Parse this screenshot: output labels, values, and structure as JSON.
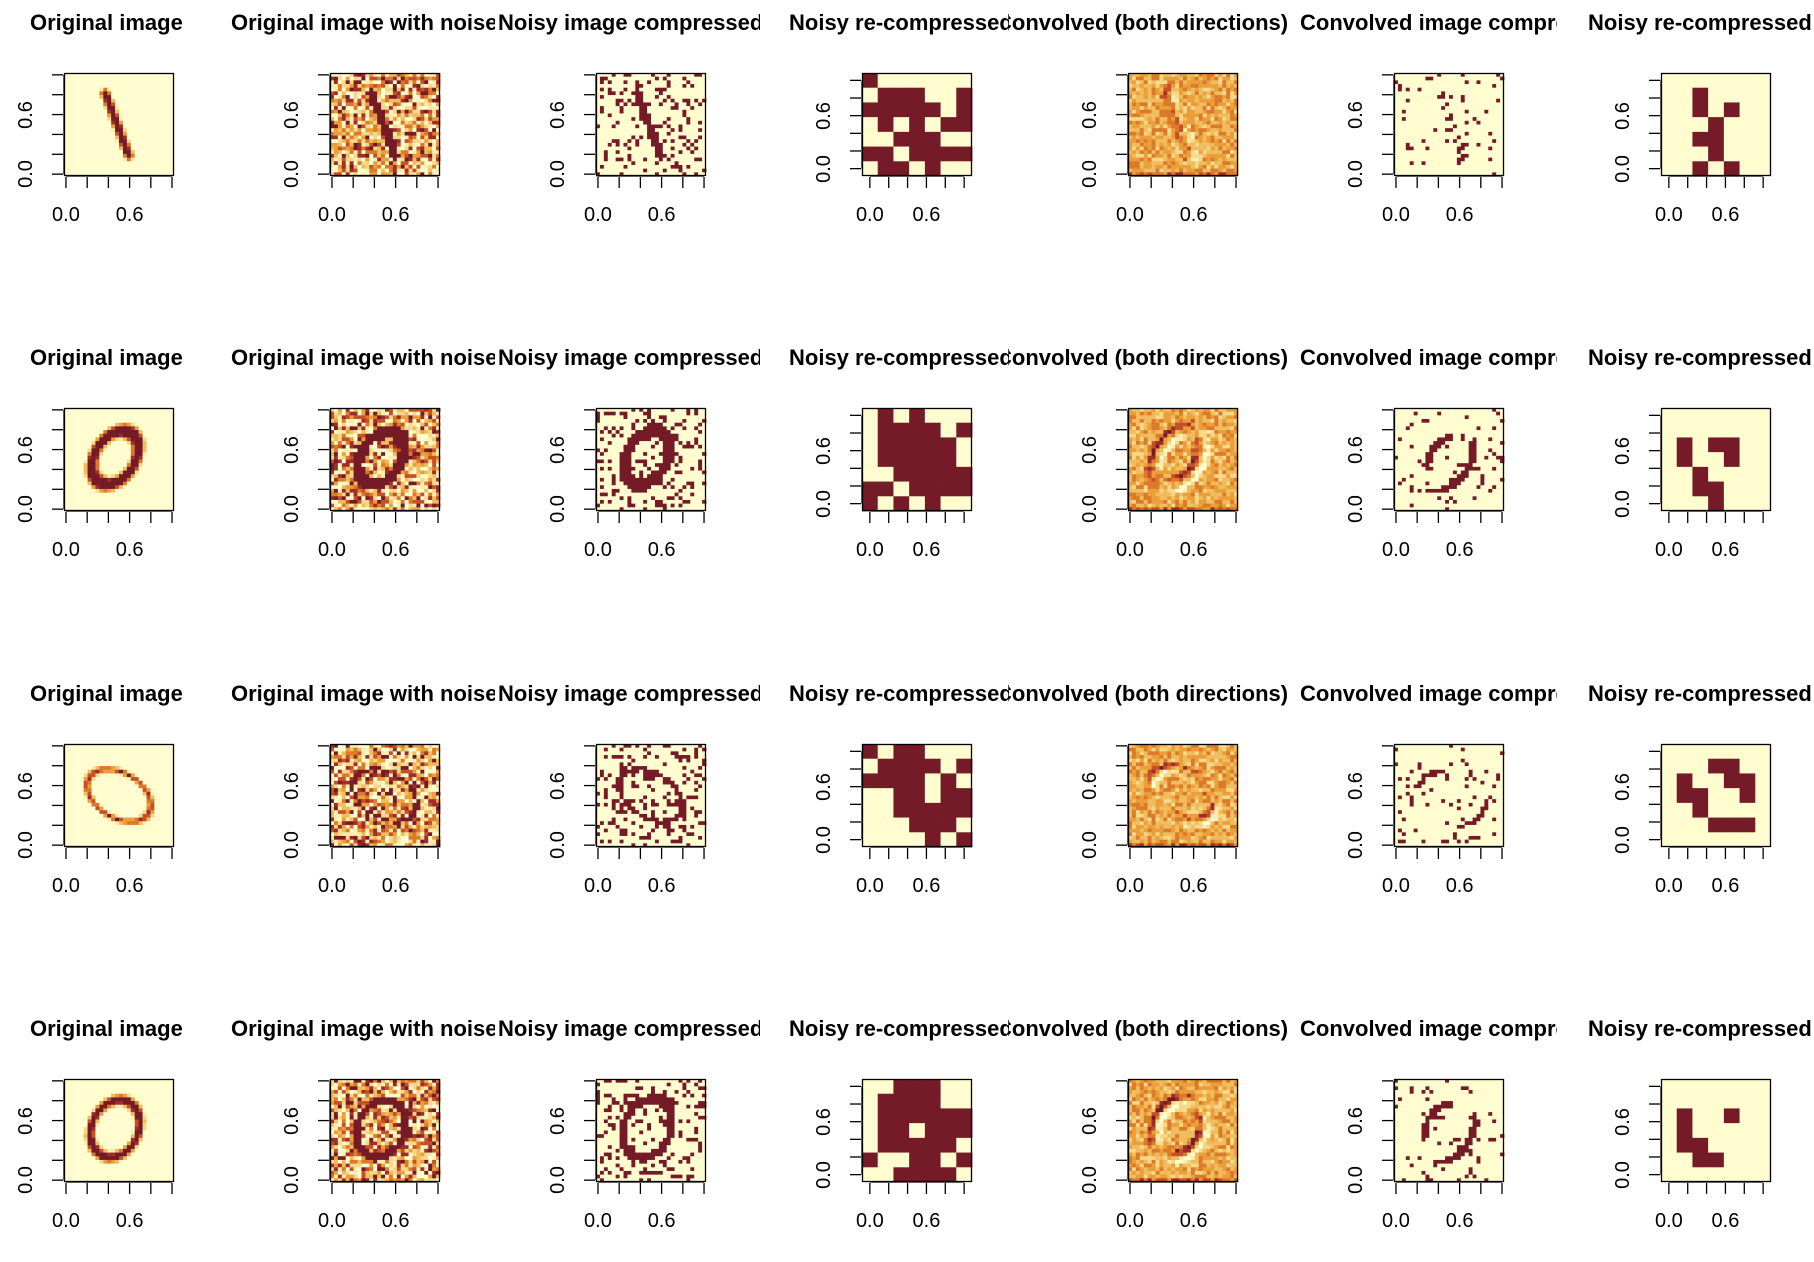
{
  "chart_data": {
    "type": "heatmap",
    "rows": 4,
    "columns": [
      {
        "title": "Original image",
        "kind": "original",
        "grid": 28
      },
      {
        "title": "Original image with noise",
        "kind": "noisy",
        "grid": 28
      },
      {
        "title": "Noisy image compressed",
        "kind": "noisy_binary",
        "grid": 28
      },
      {
        "title": "Noisy re-compressed",
        "kind": "coarse_binary_a",
        "grid": 7
      },
      {
        "title": "Convolved (both directions)",
        "kind": "convolved",
        "grid": 28
      },
      {
        "title": "Convolved image compressed",
        "kind": "convolved_binary",
        "grid": 28
      },
      {
        "title": "Noisy re-compressed",
        "kind": "coarse_binary_b",
        "grid": 7
      }
    ],
    "axis": {
      "xlim": [
        0,
        1
      ],
      "ylim": [
        0,
        1
      ],
      "ticks": [
        0,
        0.2,
        0.4,
        0.6,
        0.8,
        1.0
      ],
      "labeled_ticks": [
        0,
        0.6
      ],
      "tick_labels": [
        "0.0",
        "0.6"
      ]
    },
    "coarse_binary_a": [
      [
        [
          1,
          0,
          0,
          0,
          0,
          0,
          0
        ],
        [
          0,
          1,
          1,
          1,
          0,
          0,
          1
        ],
        [
          1,
          1,
          1,
          1,
          1,
          0,
          1
        ],
        [
          0,
          1,
          0,
          1,
          0,
          1,
          1
        ],
        [
          0,
          0,
          1,
          1,
          1,
          0,
          0
        ],
        [
          1,
          1,
          0,
          1,
          1,
          1,
          1
        ],
        [
          0,
          1,
          1,
          0,
          1,
          0,
          0
        ]
      ],
      [
        [
          0,
          1,
          0,
          1,
          0,
          0,
          0
        ],
        [
          0,
          1,
          1,
          1,
          1,
          0,
          1
        ],
        [
          0,
          1,
          1,
          1,
          1,
          1,
          0
        ],
        [
          0,
          1,
          1,
          1,
          1,
          1,
          0
        ],
        [
          0,
          0,
          1,
          1,
          1,
          1,
          1
        ],
        [
          1,
          1,
          0,
          1,
          1,
          1,
          1
        ],
        [
          1,
          0,
          1,
          0,
          1,
          0,
          0
        ]
      ],
      [
        [
          1,
          0,
          1,
          1,
          0,
          0,
          0
        ],
        [
          0,
          1,
          1,
          1,
          1,
          0,
          1
        ],
        [
          1,
          1,
          1,
          1,
          0,
          1,
          0
        ],
        [
          0,
          0,
          1,
          1,
          0,
          1,
          1
        ],
        [
          0,
          0,
          1,
          1,
          1,
          1,
          1
        ],
        [
          0,
          0,
          0,
          1,
          1,
          1,
          0
        ],
        [
          0,
          0,
          0,
          0,
          1,
          0,
          1
        ]
      ],
      [
        [
          0,
          0,
          1,
          1,
          1,
          0,
          0
        ],
        [
          0,
          1,
          1,
          1,
          1,
          0,
          0
        ],
        [
          0,
          1,
          1,
          1,
          1,
          1,
          1
        ],
        [
          0,
          1,
          1,
          0,
          1,
          1,
          1
        ],
        [
          0,
          1,
          1,
          1,
          1,
          1,
          0
        ],
        [
          1,
          0,
          0,
          1,
          1,
          0,
          1
        ],
        [
          0,
          0,
          1,
          1,
          1,
          1,
          0
        ]
      ]
    ],
    "coarse_binary_b": [
      [
        [
          0,
          0,
          0,
          0,
          0,
          0,
          0
        ],
        [
          0,
          0,
          1,
          0,
          0,
          0,
          0
        ],
        [
          0,
          0,
          1,
          0,
          1,
          0,
          0
        ],
        [
          0,
          0,
          0,
          1,
          0,
          0,
          0
        ],
        [
          0,
          0,
          1,
          1,
          0,
          0,
          0
        ],
        [
          0,
          0,
          0,
          1,
          0,
          0,
          0
        ],
        [
          0,
          0,
          1,
          0,
          1,
          0,
          0
        ]
      ],
      [
        [
          0,
          0,
          0,
          0,
          0,
          0,
          0
        ],
        [
          0,
          0,
          0,
          0,
          0,
          0,
          0
        ],
        [
          0,
          1,
          0,
          1,
          1,
          0,
          0
        ],
        [
          0,
          1,
          0,
          0,
          1,
          0,
          0
        ],
        [
          0,
          0,
          1,
          0,
          0,
          0,
          0
        ],
        [
          0,
          0,
          1,
          1,
          0,
          0,
          0
        ],
        [
          0,
          0,
          0,
          1,
          0,
          0,
          0
        ]
      ],
      [
        [
          0,
          0,
          0,
          0,
          0,
          0,
          0
        ],
        [
          0,
          0,
          0,
          1,
          1,
          0,
          0
        ],
        [
          0,
          1,
          0,
          0,
          1,
          1,
          0
        ],
        [
          0,
          1,
          1,
          0,
          0,
          1,
          0
        ],
        [
          0,
          0,
          1,
          0,
          0,
          0,
          0
        ],
        [
          0,
          0,
          0,
          1,
          1,
          1,
          0
        ],
        [
          0,
          0,
          0,
          0,
          0,
          0,
          0
        ]
      ],
      [
        [
          0,
          0,
          0,
          0,
          0,
          0,
          0
        ],
        [
          0,
          0,
          0,
          0,
          0,
          0,
          0
        ],
        [
          0,
          1,
          0,
          0,
          1,
          0,
          0
        ],
        [
          0,
          1,
          0,
          0,
          0,
          0,
          0
        ],
        [
          0,
          1,
          1,
          0,
          0,
          0,
          0
        ],
        [
          0,
          0,
          1,
          1,
          0,
          0,
          0
        ],
        [
          0,
          0,
          0,
          0,
          0,
          0,
          0
        ]
      ]
    ],
    "palette": [
      "#FFFDD0",
      "#FAEDB0",
      "#F6D88A",
      "#F0BD5E",
      "#EA9F3A",
      "#DC7A2C",
      "#C5502A",
      "#9F2E2B",
      "#741B27"
    ]
  }
}
